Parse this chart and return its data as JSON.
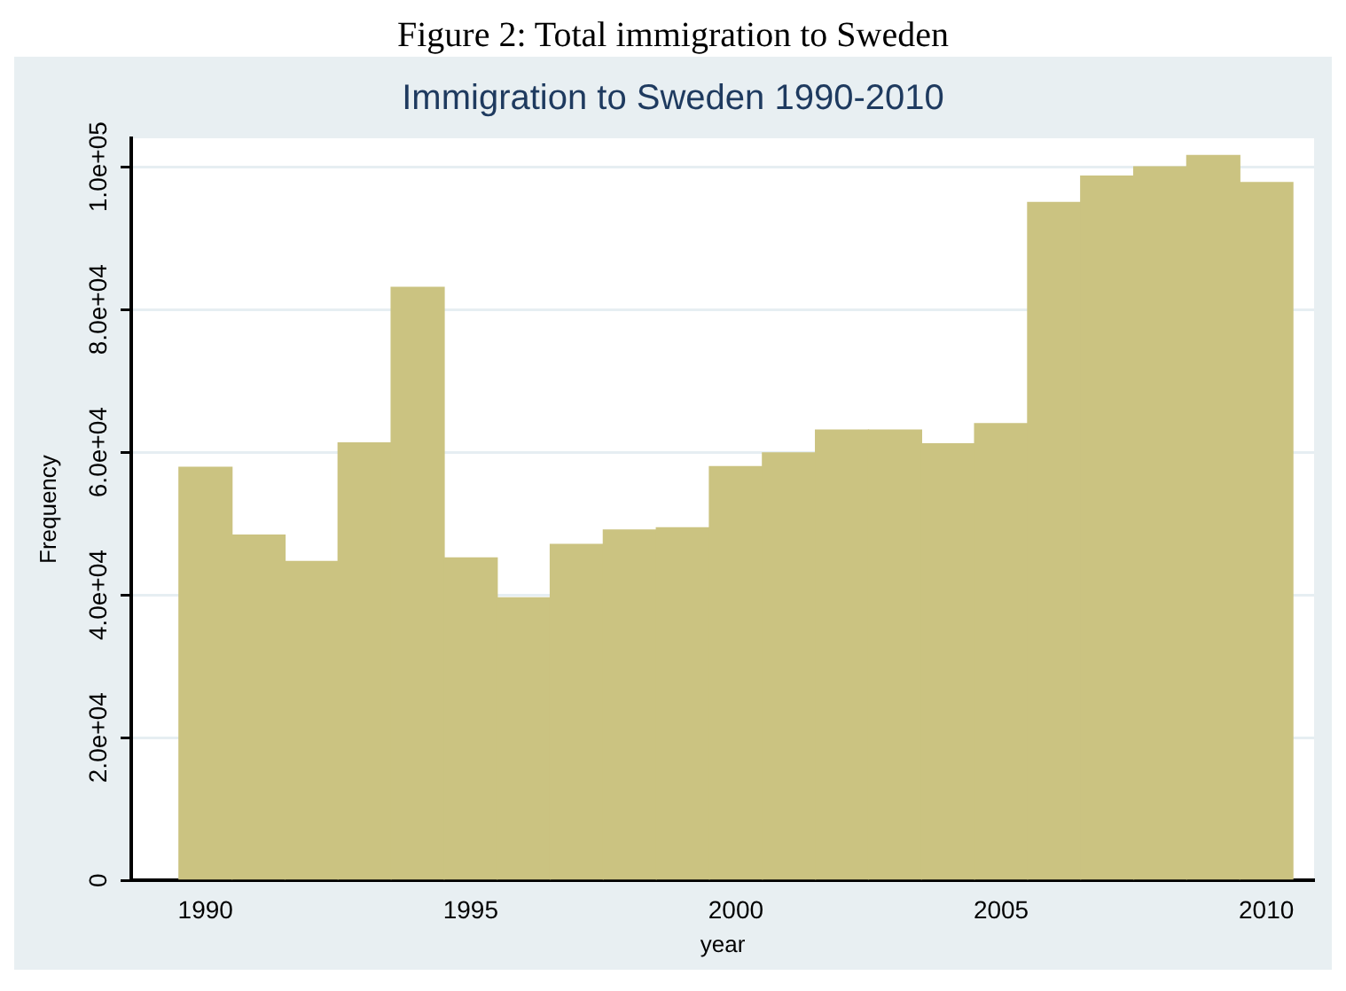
{
  "chart_data": {
    "type": "histogram",
    "title": "Immigration to Sweden 1990-2010",
    "annotations": [
      "Figure 2: Total immigration to Sweden"
    ],
    "xlabel": "year",
    "ylabel": "Frequency",
    "bins": [
      1989.5,
      1990.5,
      1991.5,
      1992.5,
      1993.5,
      1994.5,
      1995.5,
      1996.5,
      1997.5,
      1998.5,
      1999.5,
      2000.5,
      2001.5,
      2002.5,
      2003.5,
      2004.5,
      2005.5,
      2006.5,
      2007.5,
      2008.5,
      2009.5,
      2010.5
    ],
    "values": [
      57900,
      48400,
      44700,
      61300,
      83100,
      45200,
      39600,
      47100,
      49100,
      49400,
      58000,
      59900,
      63100,
      63100,
      61200,
      64000,
      95000,
      98700,
      100000,
      101600,
      97800
    ],
    "color": "#cbc381",
    "xlim": [
      1988.6,
      2010.9
    ],
    "xticks": [
      1990,
      1995,
      2000,
      2005,
      2010
    ],
    "ylim": [
      0,
      104000
    ],
    "yticks": [
      0,
      {
        "value": 20000,
        "label": "2.0e+04"
      },
      {
        "value": 40000,
        "label": "4.0e+04"
      },
      {
        "value": 60000,
        "label": "6.0e+04"
      },
      {
        "value": 80000,
        "label": "8.0e+04"
      },
      {
        "value": 100000,
        "label": "1.0e+05"
      }
    ],
    "grid": "y"
  }
}
